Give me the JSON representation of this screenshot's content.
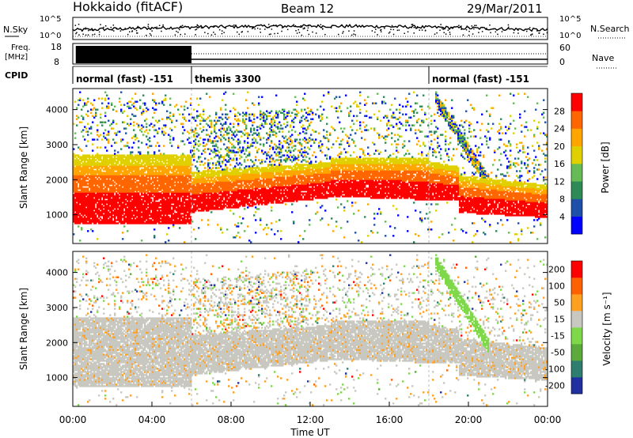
{
  "header": {
    "title": "Hokkaido (fitACF)",
    "beam": "Beam 12",
    "date": "29/Mar/2011"
  },
  "panel_labels": {
    "nsky": "N.Sky",
    "nsky_ticks": [
      "10^5",
      "10^0"
    ],
    "nsearch": "N.Search",
    "nsearch_ticks": [
      "10^5",
      "10^0"
    ],
    "freq": "Freq.",
    "freq_unit": "[MHz]",
    "freq_ticks": [
      "18",
      "8"
    ],
    "nave": "Nave",
    "nave_ticks": [
      "60",
      "0"
    ],
    "cpid": "CPID"
  },
  "cpid_segments": [
    {
      "label": "normal (fast) -151",
      "start_h": 0,
      "end_h": 6
    },
    {
      "label": "themis 3300",
      "start_h": 6,
      "end_h": 18
    },
    {
      "label": "normal (fast) -151",
      "start_h": 18,
      "end_h": 24
    }
  ],
  "chart_data": [
    {
      "type": "heatmap",
      "panel": "power",
      "ylabel": "Slant Range [km]",
      "xlabel": "",
      "yticks": [
        "1000",
        "2000",
        "3000",
        "4000"
      ],
      "ylim": [
        180,
        4600
      ],
      "xlim": [
        0,
        24
      ],
      "colorbar": {
        "label": "Power [dB]",
        "ticks": [
          "4",
          "8",
          "12",
          "16",
          "20",
          "24",
          "28"
        ],
        "colors": [
          "#0000ff",
          "#1f4fa8",
          "#2e8b57",
          "#66bb55",
          "#e0d000",
          "#ffa500",
          "#ff6600",
          "#ff0000"
        ]
      }
    },
    {
      "type": "heatmap",
      "panel": "velocity",
      "ylabel": "Slant Range [km]",
      "xlabel": "Time UT",
      "yticks": [
        "1000",
        "2000",
        "3000",
        "4000"
      ],
      "xticks": [
        "00:00",
        "04:00",
        "08:00",
        "12:00",
        "16:00",
        "20:00",
        "00:00"
      ],
      "ylim": [
        180,
        4600
      ],
      "xlim": [
        0,
        24
      ],
      "colorbar": {
        "label": "Velocity [m s⁻¹]",
        "ticks": [
          "200",
          "100",
          "50",
          "15",
          "-15",
          "-50",
          "-100",
          "-200"
        ],
        "colors": [
          "#2030a0",
          "#2e7d6e",
          "#5caa3c",
          "#7ed84a",
          "#c8c8c0",
          "#ffa020",
          "#ff6000",
          "#ff0000"
        ]
      }
    }
  ]
}
